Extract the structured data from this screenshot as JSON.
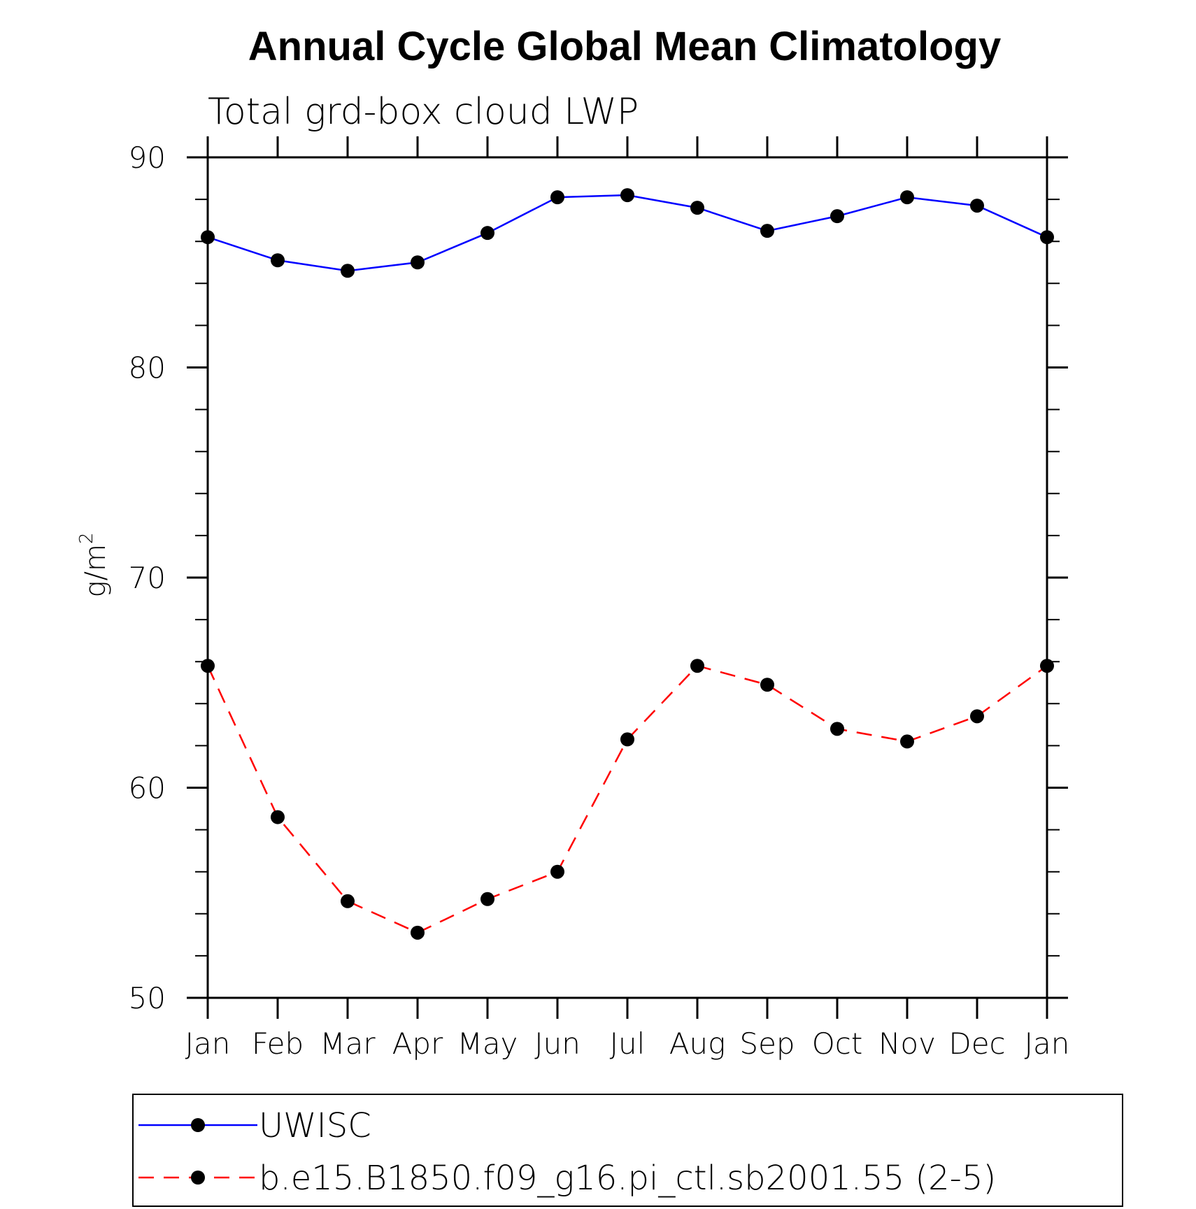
{
  "chart_data": {
    "type": "line",
    "title": "Annual Cycle Global Mean Climatology",
    "subtitle": "Total grd-box cloud LWP",
    "ylabel": "g/m",
    "ylabel_superscript": "2",
    "xlabel": "",
    "ylim": [
      50,
      90
    ],
    "yticks": [
      50,
      60,
      70,
      80,
      90
    ],
    "categories": [
      "Jan",
      "Feb",
      "Mar",
      "Apr",
      "May",
      "Jun",
      "Jul",
      "Aug",
      "Sep",
      "Oct",
      "Nov",
      "Dec",
      "Jan"
    ],
    "grid": false,
    "legend_position": "bottom",
    "series": [
      {
        "name": "UWISC",
        "color": "#0000ff",
        "dash": "solid",
        "marker": "filled-circle",
        "values": [
          86.2,
          85.1,
          84.6,
          85.0,
          86.4,
          88.1,
          88.2,
          87.6,
          86.5,
          87.2,
          88.1,
          87.7,
          86.2
        ]
      },
      {
        "name": "b.e15.B1850.f09_g16.pi_ctl.sb2001.55 (2-5)",
        "color": "#ff0000",
        "dash": "dashed",
        "marker": "filled-circle",
        "values": [
          65.8,
          58.6,
          54.6,
          53.1,
          54.7,
          56.0,
          62.3,
          65.8,
          64.9,
          62.8,
          62.2,
          63.4,
          65.8
        ]
      }
    ]
  }
}
